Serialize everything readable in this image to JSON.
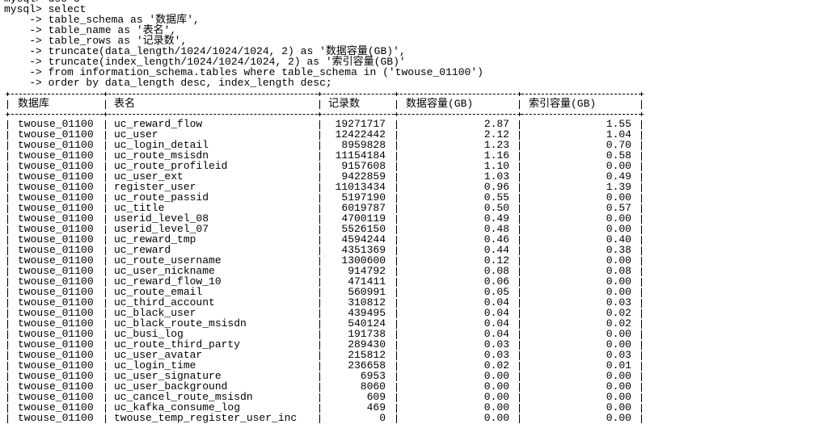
{
  "session": {
    "prompt_lines": [
      "mysql> use c",
      "mysql> select",
      "    -> table_schema as '数据库',",
      "    -> table_name as '表名',",
      "    -> table_rows as '记录数',",
      "    -> truncate(data_length/1024/1024/1024, 2) as '数据容量(GB)',",
      "    -> truncate(index_length/1024/1024/1024, 2) as '索引容量(GB)'",
      "    -> from information_schema.tables where table_schema in ('twouse_01100')",
      "    -> order by data_length desc, index_length desc;"
    ],
    "table": {
      "header": [
        "数据库",
        "表名",
        "记录数",
        "数据容量(GB)",
        "索引容量(GB)"
      ],
      "rows": [
        [
          "twouse_01100",
          "uc_reward_flow",
          "19271717",
          "2.87",
          "1.55"
        ],
        [
          "twouse_01100",
          "uc_user",
          "12422442",
          "2.12",
          "1.04"
        ],
        [
          "twouse_01100",
          "uc_login_detail",
          "8959828",
          "1.23",
          "0.70"
        ],
        [
          "twouse_01100",
          "uc_route_msisdn",
          "11154184",
          "1.16",
          "0.58"
        ],
        [
          "twouse_01100",
          "uc_route_profileid",
          "9157608",
          "1.10",
          "0.00"
        ],
        [
          "twouse_01100",
          "uc_user_ext",
          "9422859",
          "1.03",
          "0.49"
        ],
        [
          "twouse_01100",
          "register_user",
          "11013434",
          "0.96",
          "1.39"
        ],
        [
          "twouse_01100",
          "uc_route_passid",
          "5197190",
          "0.55",
          "0.00"
        ],
        [
          "twouse_01100",
          "uc_title",
          "6019787",
          "0.50",
          "0.57"
        ],
        [
          "twouse_01100",
          "userid_level_08",
          "4700119",
          "0.49",
          "0.00"
        ],
        [
          "twouse_01100",
          "userid_level_07",
          "5526150",
          "0.48",
          "0.00"
        ],
        [
          "twouse_01100",
          "uc_reward_tmp",
          "4594244",
          "0.46",
          "0.40"
        ],
        [
          "twouse_01100",
          "uc_reward",
          "4351369",
          "0.44",
          "0.38"
        ],
        [
          "twouse_01100",
          "uc_route_username",
          "1300600",
          "0.12",
          "0.00"
        ],
        [
          "twouse_01100",
          "uc_user_nickname",
          "914792",
          "0.08",
          "0.08"
        ],
        [
          "twouse_01100",
          "uc_reward_flow_10",
          "471411",
          "0.06",
          "0.00"
        ],
        [
          "twouse_01100",
          "uc_route_email",
          "560991",
          "0.05",
          "0.00"
        ],
        [
          "twouse_01100",
          "uc_third_account",
          "310812",
          "0.04",
          "0.03"
        ],
        [
          "twouse_01100",
          "uc_black_user",
          "439495",
          "0.04",
          "0.02"
        ],
        [
          "twouse_01100",
          "uc_black_route_msisdn",
          "540124",
          "0.04",
          "0.02"
        ],
        [
          "twouse_01100",
          "uc_busi_log",
          "191738",
          "0.04",
          "0.00"
        ],
        [
          "twouse_01100",
          "uc_route_third_party",
          "289430",
          "0.03",
          "0.00"
        ],
        [
          "twouse_01100",
          "uc_user_avatar",
          "215812",
          "0.03",
          "0.03"
        ],
        [
          "twouse_01100",
          "uc_login_time",
          "236658",
          "0.02",
          "0.01"
        ],
        [
          "twouse_01100",
          "uc_user_signature",
          "6953",
          "0.00",
          "0.00"
        ],
        [
          "twouse_01100",
          "uc_user_background",
          "8060",
          "0.00",
          "0.00"
        ],
        [
          "twouse_01100",
          "uc_cancel_route_msisdn",
          "609",
          "0.00",
          "0.00"
        ],
        [
          "twouse_01100",
          "uc_kafka_consume_log",
          "469",
          "0.00",
          "0.00"
        ],
        [
          "twouse_01100",
          "twouse_temp_register_user_inc",
          "0",
          "0.00",
          "0.00"
        ]
      ]
    }
  }
}
